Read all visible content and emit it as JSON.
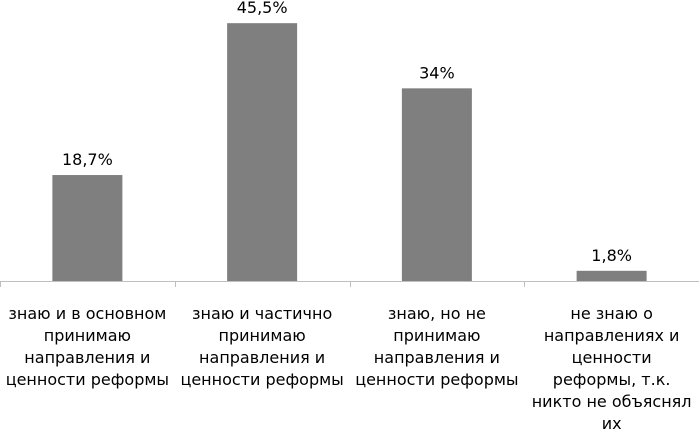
{
  "chart_data": {
    "type": "bar",
    "categories": [
      "знаю и в основном принимаю направления и ценности реформы",
      "знаю и частично принимаю направления и ценности реформы",
      "знаю, но не принимаю направления и ценности реформы",
      "не знаю о направлениях и ценности реформы, т.к. никто не объяснял их"
    ],
    "category_lines": [
      [
        "знаю и в основном",
        "принимаю",
        "направления и",
        "ценности реформы"
      ],
      [
        "знаю и частично",
        "принимаю",
        "направления и",
        "ценности реформы"
      ],
      [
        "знаю, но не",
        "принимаю",
        "направления и",
        "ценности реформы"
      ],
      [
        "не знаю о",
        "направлениях и",
        "ценности",
        "реформы, т.к.",
        "никто не объяснял",
        "их"
      ]
    ],
    "values": [
      18.7,
      45.5,
      34,
      1.8
    ],
    "data_labels": [
      "18,7%",
      "45,5%",
      "34%",
      "1,8%"
    ],
    "bar_color": "#7f7f7f",
    "axis_color": "#bfbfbf",
    "ylim": [
      0,
      48
    ],
    "grid": false,
    "title": "",
    "xlabel": "",
    "ylabel": ""
  }
}
